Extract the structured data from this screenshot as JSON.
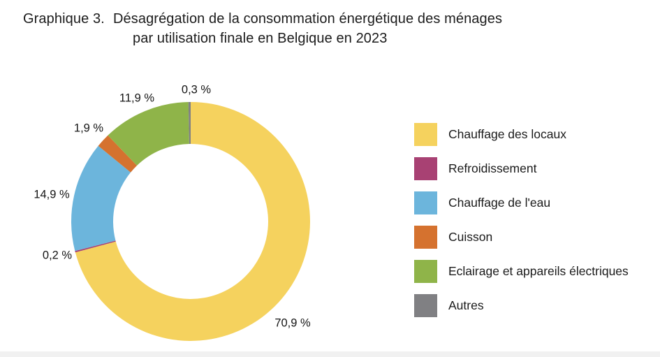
{
  "title": {
    "prefix": "Graphique 3.",
    "line1": "Désagrégation de la consommation énergétique des ménages",
    "line2": "par utilisation finale en Belgique en 2023"
  },
  "chart_data": {
    "type": "pie",
    "subtype": "donut",
    "title": "Désagrégation de la consommation énergétique des ménages par utilisation finale en Belgique en 2023",
    "unit": "%",
    "start_angle_deg": 0,
    "direction": "clockwise",
    "legend_position": "right",
    "slices": [
      {
        "label": "Chauffage des locaux",
        "value": 70.9,
        "display": "70,9 %",
        "color": "#F5D25E"
      },
      {
        "label": "Refroidissement",
        "value": 0.2,
        "display": "0,2 %",
        "color": "#A84173"
      },
      {
        "label": "Chauffage de l'eau",
        "value": 14.9,
        "display": "14,9 %",
        "color": "#6CB5DC"
      },
      {
        "label": "Cuisson",
        "value": 1.9,
        "display": "1,9 %",
        "color": "#D5722F"
      },
      {
        "label": "Eclairage et appareils électriques",
        "value": 11.9,
        "display": "11,9 %",
        "color": "#8FB449"
      },
      {
        "label": "Autres",
        "value": 0.3,
        "display": "0,3 %",
        "color": "#808083"
      }
    ]
  }
}
